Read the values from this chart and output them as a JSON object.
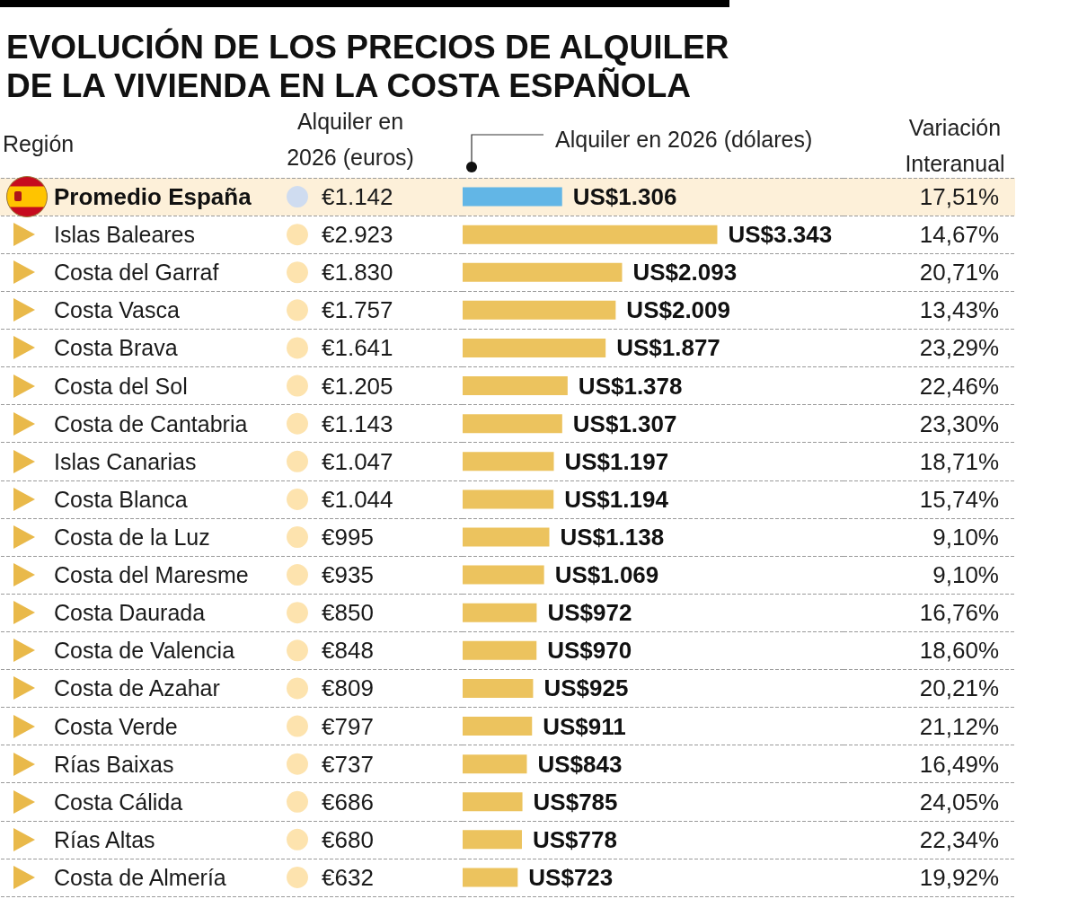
{
  "chart_data": [
    {
      "type": "bar",
      "orientation": "horizontal",
      "title": "EVOLUCIÓN DE LOS PRECIOS DE ALQUILER DE LA VIVIENDA EN LA COSTA ESPAÑOLA",
      "ylabel": "Región",
      "xlabel": "Alquiler en 2026 (dólares)",
      "categories": [
        "Promedio España",
        "Islas Baleares",
        "Costa del Garraf",
        "Costa Vasca",
        "Costa Brava",
        "Costa del Sol",
        "Costa de Cantabria",
        "Islas Canarias",
        "Costa Blanca",
        "Costa de la Luz",
        "Costa del Maresme",
        "Costa Daurada",
        "Costa de Valencia",
        "Costa de Azahar",
        "Costa Verde",
        "Rías Baixas",
        "Costa Cálida",
        "Rías Altas",
        "Costa de Almería"
      ],
      "values": [
        1306,
        3343,
        2093,
        2009,
        1877,
        1378,
        1307,
        1197,
        1194,
        1138,
        1069,
        972,
        970,
        925,
        911,
        843,
        785,
        778,
        723
      ],
      "value_labels": [
        "US$1.306",
        "US$3.343",
        "US$2.093",
        "US$2.009",
        "US$1.877",
        "US$1.378",
        "US$1.307",
        "US$1.197",
        "US$1.194",
        "US$1.138",
        "US$1.069",
        "US$972",
        "US$970",
        "US$925",
        "US$911",
        "US$843",
        "US$785",
        "US$778",
        "US$723"
      ],
      "colors": [
        "#62b6e6",
        "#ecc35e",
        "#ecc35e",
        "#ecc35e",
        "#ecc35e",
        "#ecc35e",
        "#ecc35e",
        "#ecc35e",
        "#ecc35e",
        "#ecc35e",
        "#ecc35e",
        "#ecc35e",
        "#ecc35e",
        "#ecc35e",
        "#ecc35e",
        "#ecc35e",
        "#ecc35e",
        "#ecc35e",
        "#ecc35e"
      ],
      "xlim": [
        0,
        5000
      ],
      "grid": "y",
      "tick_labels": "y",
      "bands": [
        {
          "axis": "y",
          "from": "Promedio España",
          "to": "Promedio España",
          "color": "#fdf0d9"
        }
      ]
    },
    {
      "type": "other",
      "xlabel": "Alquiler en 2026 (euros)",
      "values": [
        1142,
        2923,
        1830,
        1757,
        1641,
        1205,
        1143,
        1047,
        1044,
        995,
        935,
        850,
        848,
        809,
        797,
        737,
        686,
        680,
        632
      ],
      "value_labels": [
        "€1.142",
        "€2.923",
        "€1.830",
        "€1.757",
        "€1.641",
        "€1.205",
        "€1.143",
        "€1.047",
        "€1.044",
        "€995",
        "€935",
        "€850",
        "€848",
        "€809",
        "€797",
        "€737",
        "€686",
        "€680",
        "€632"
      ],
      "colors": [
        "#cfdcf0",
        "#fde3ae",
        "#fde3ae",
        "#fde3ae",
        "#fde3ae",
        "#fde3ae",
        "#fde3ae",
        "#fde3ae",
        "#fde3ae",
        "#fde3ae",
        "#fde3ae",
        "#fde3ae",
        "#fde3ae",
        "#fde3ae",
        "#fde3ae",
        "#fde3ae",
        "#fde3ae",
        "#fde3ae",
        "#fde3ae"
      ]
    },
    {
      "type": "other",
      "xlabel": "Variación Interanual",
      "values": [
        17.51,
        14.67,
        20.71,
        13.43,
        23.29,
        22.46,
        23.3,
        18.71,
        15.74,
        9.1,
        9.1,
        16.76,
        18.6,
        20.21,
        21.12,
        16.49,
        24.05,
        22.34,
        19.92
      ],
      "value_labels": [
        "17,51%",
        "14,67%",
        "20,71%",
        "13,43%",
        "23,29%",
        "22,46%",
        "23,30%",
        "18,71%",
        "15,74%",
        "9,10%",
        "9,10%",
        "16,76%",
        "18,60%",
        "20,21%",
        "21,12%",
        "16,49%",
        "24,05%",
        "22,34%",
        "19,92%"
      ]
    }
  ]
}
